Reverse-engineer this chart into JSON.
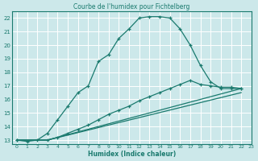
{
  "title": "Courbe de l'humidex pour Fichtelberg",
  "xlabel": "Humidex (Indice chaleur)",
  "xlim": [
    -0.5,
    23
  ],
  "ylim": [
    12.7,
    22.5
  ],
  "yticks": [
    13,
    14,
    15,
    16,
    17,
    18,
    19,
    20,
    21,
    22
  ],
  "xticks": [
    0,
    1,
    2,
    3,
    4,
    5,
    6,
    7,
    8,
    9,
    10,
    11,
    12,
    13,
    14,
    15,
    16,
    17,
    18,
    19,
    20,
    21,
    22,
    23
  ],
  "bg_color": "#cce8ea",
  "line_color": "#1a7a6e",
  "grid_color": "#ffffff",
  "curves": [
    {
      "x": [
        0,
        1,
        2,
        3,
        4,
        5,
        6,
        7,
        8,
        9,
        10,
        11,
        12,
        13,
        14,
        15,
        16,
        17,
        18,
        19,
        20,
        21,
        22
      ],
      "y": [
        13,
        12.9,
        13.0,
        13.5,
        14.5,
        15.5,
        16.5,
        17.0,
        18.8,
        19.3,
        20.5,
        21.2,
        22.0,
        22.1,
        22.1,
        22.0,
        21.2,
        20.0,
        18.5,
        17.3,
        16.8,
        16.8,
        16.8
      ],
      "marker": true
    },
    {
      "x": [
        0,
        3,
        4,
        5,
        6,
        7,
        8,
        9,
        10,
        11,
        12,
        13,
        14,
        15,
        16,
        17,
        18,
        19,
        20,
        21,
        22
      ],
      "y": [
        13,
        13.0,
        13.2,
        13.5,
        13.8,
        14.1,
        14.5,
        14.9,
        15.2,
        15.5,
        15.9,
        16.2,
        16.5,
        16.8,
        17.1,
        17.4,
        17.1,
        17.0,
        16.9,
        16.9,
        16.8
      ],
      "marker": true
    },
    {
      "x": [
        0,
        3,
        22
      ],
      "y": [
        13,
        13.0,
        16.8
      ],
      "marker": false
    },
    {
      "x": [
        0,
        3,
        22
      ],
      "y": [
        13,
        13.0,
        16.5
      ],
      "marker": false
    }
  ]
}
